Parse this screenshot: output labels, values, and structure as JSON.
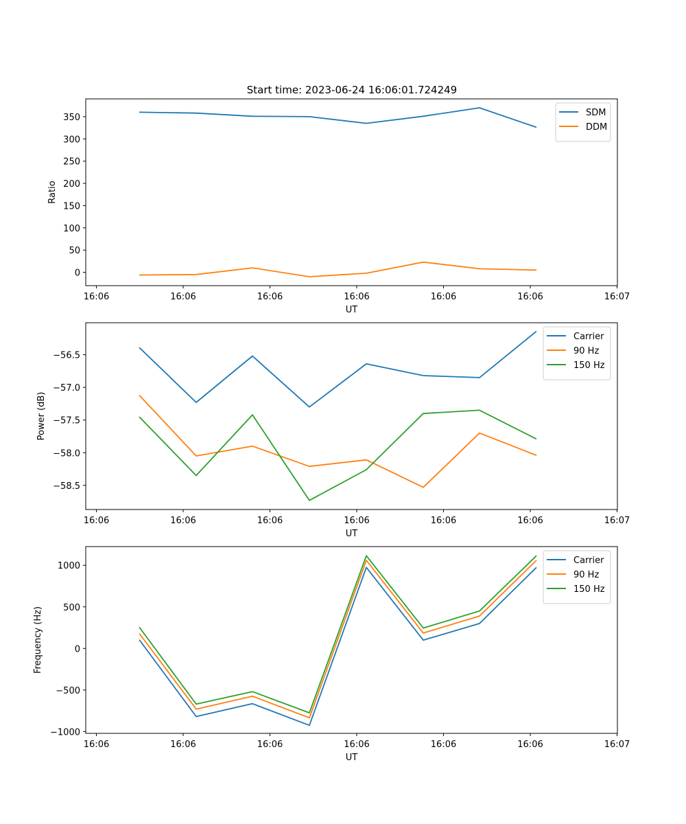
{
  "figure": {
    "title": "Start time: 2023-06-24 16:06:01.724249"
  },
  "chart_data": [
    {
      "type": "line",
      "xlabel": "UT",
      "ylabel": "Ratio",
      "x_tick_labels": [
        "16:06",
        "16:06",
        "16:06",
        "16:06",
        "16:06",
        "16:06",
        "16:07"
      ],
      "yticks": [
        0,
        50,
        100,
        150,
        200,
        250,
        300,
        350
      ],
      "ylim": [
        -30,
        390
      ],
      "x_points": [
        1,
        2,
        3,
        4,
        5,
        6,
        7,
        8
      ],
      "grid": false,
      "legend_position": "top-right",
      "series": [
        {
          "name": "SDM",
          "color": "#1f77b4",
          "values": [
            360,
            358,
            351,
            350,
            335,
            351,
            370,
            326
          ]
        },
        {
          "name": "DDM",
          "color": "#ff7f0e",
          "values": [
            -6,
            -5,
            10,
            -10,
            -2,
            23,
            8,
            5
          ]
        }
      ]
    },
    {
      "type": "line",
      "xlabel": "UT",
      "ylabel": "Power (dB)",
      "x_tick_labels": [
        "16:06",
        "16:06",
        "16:06",
        "16:06",
        "16:06",
        "16:06",
        "16:07"
      ],
      "yticks": [
        -58.5,
        -58.0,
        -57.5,
        -57.0,
        -56.5
      ],
      "ytick_labels": [
        "−58.5",
        "−58.0",
        "−57.5",
        "−57.0",
        "−56.5"
      ],
      "ylim": [
        -58.87,
        -56.01
      ],
      "x_points": [
        1,
        2,
        3,
        4,
        5,
        6,
        7,
        8
      ],
      "grid": false,
      "legend_position": "top-right",
      "series": [
        {
          "name": "Carrier",
          "color": "#1f77b4",
          "values": [
            -56.39,
            -57.23,
            -56.52,
            -57.3,
            -56.64,
            -56.82,
            -56.85,
            -56.14
          ]
        },
        {
          "name": "90 Hz",
          "color": "#ff7f0e",
          "values": [
            -57.12,
            -58.05,
            -57.9,
            -58.21,
            -58.11,
            -58.53,
            -57.7,
            -58.04
          ]
        },
        {
          "name": "150 Hz",
          "color": "#2ca02c",
          "values": [
            -57.45,
            -58.35,
            -57.42,
            -58.73,
            -58.26,
            -57.4,
            -57.35,
            -57.79
          ]
        }
      ]
    },
    {
      "type": "line",
      "xlabel": "UT",
      "ylabel": "Frequency (Hz)",
      "x_tick_labels": [
        "16:06",
        "16:06",
        "16:06",
        "16:06",
        "16:06",
        "16:06",
        "16:07"
      ],
      "yticks": [
        -1000,
        -500,
        0,
        500,
        1000
      ],
      "ytick_labels": [
        "−1000",
        "−500",
        "0",
        "500",
        "1000"
      ],
      "ylim": [
        -1022,
        1225
      ],
      "x_points": [
        1,
        2,
        3,
        4,
        5,
        6,
        7,
        8
      ],
      "grid": false,
      "legend_position": "top-right",
      "series": [
        {
          "name": "Carrier",
          "color": "#1f77b4",
          "values": [
            105,
            -820,
            -665,
            -925,
            975,
            100,
            300,
            975
          ]
        },
        {
          "name": "90 Hz",
          "color": "#ff7f0e",
          "values": [
            180,
            -730,
            -575,
            -835,
            1060,
            185,
            390,
            1060
          ]
        },
        {
          "name": "150 Hz",
          "color": "#2ca02c",
          "values": [
            255,
            -670,
            -520,
            -775,
            1115,
            245,
            450,
            1115
          ]
        }
      ]
    }
  ]
}
